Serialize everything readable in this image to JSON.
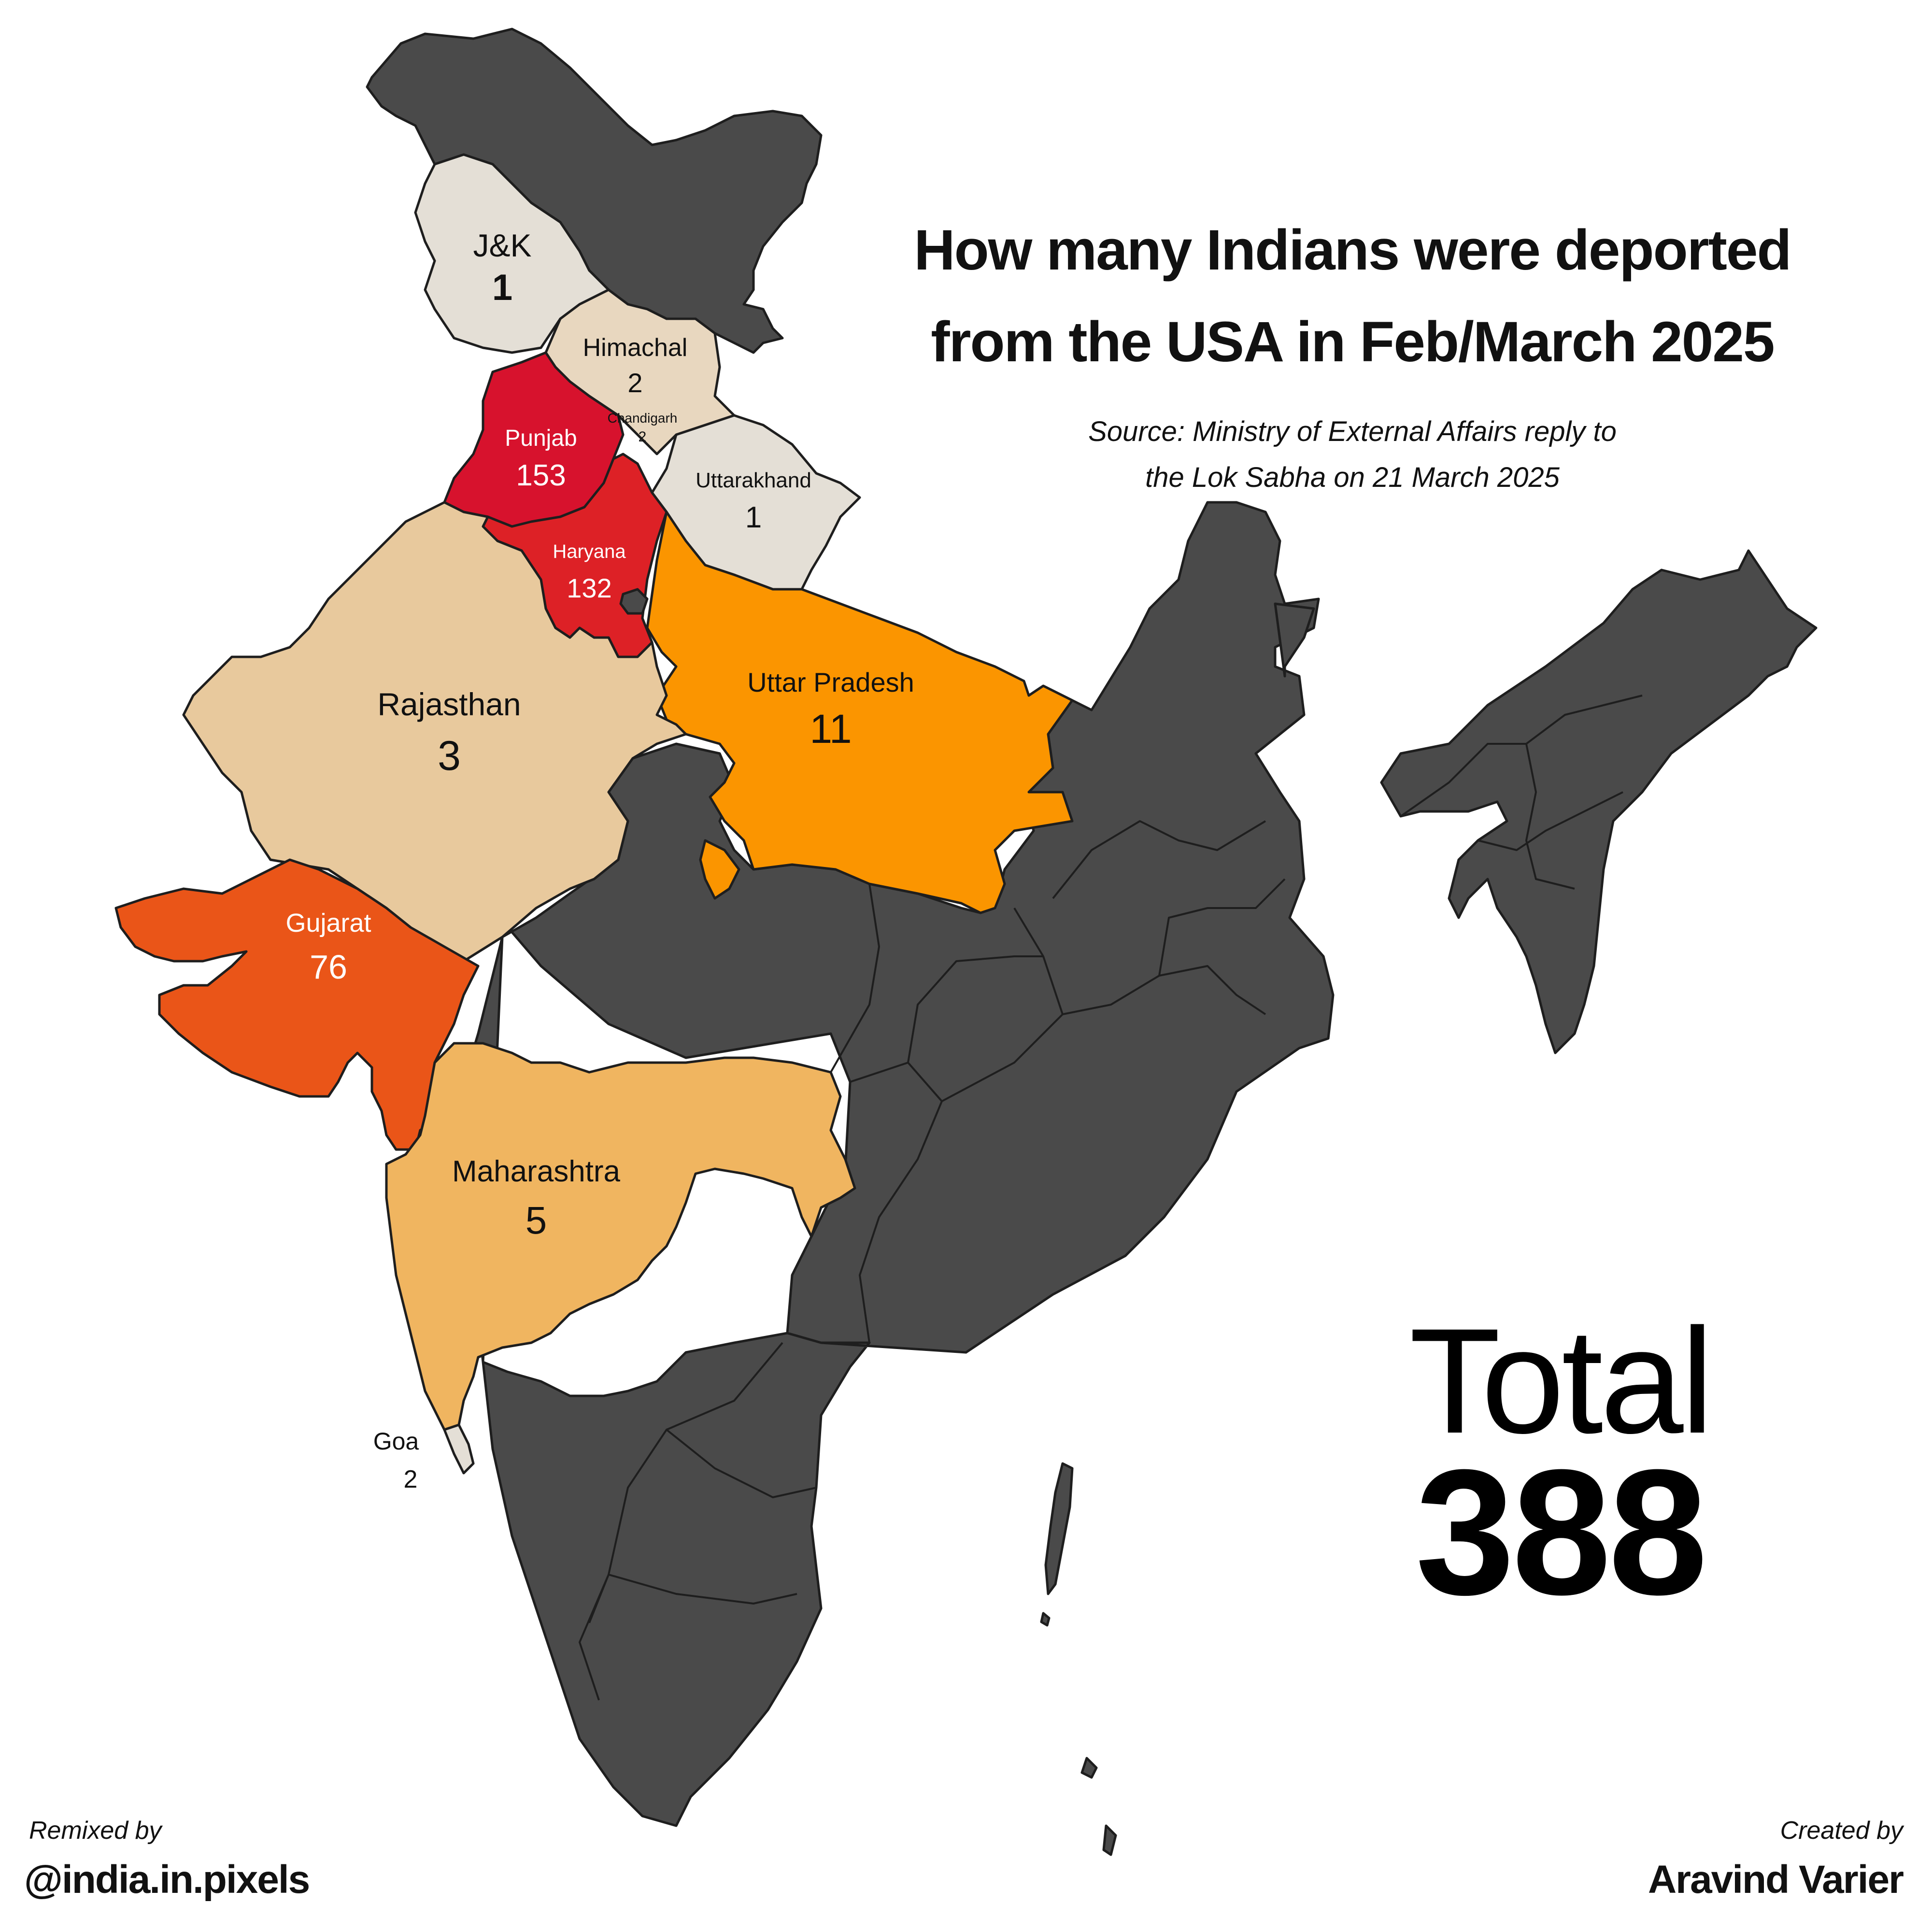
{
  "header": {
    "title_line1": "How many Indians were deported",
    "title_line2": "from the USA in Feb/March 2025",
    "source_line1": "Source: Ministry of External Affairs reply to",
    "source_line2": "the Lok Sabha on 21 March 2025"
  },
  "total": {
    "label": "Total",
    "value": "388"
  },
  "credits": {
    "remixed_label": "Remixed by",
    "remixed_handle": "@india.in.pixels",
    "created_label": "Created by",
    "created_name": "Aravind Varier"
  },
  "colors": {
    "no_data": "#4a4a4a",
    "background": "#ffffff",
    "state_border": "#1e1e1e"
  },
  "states": [
    {
      "name": "J&K",
      "value": "1",
      "color": "#e4dfd6"
    },
    {
      "name": "Himachal",
      "value": "2",
      "color": "#e8d7bf"
    },
    {
      "name": "Chandigarh",
      "value": "2",
      "color": "#e4dfd6"
    },
    {
      "name": "Punjab",
      "value": "153",
      "color": "#d7122d"
    },
    {
      "name": "Uttarakhand",
      "value": "1",
      "color": "#e4dfd6"
    },
    {
      "name": "Haryana",
      "value": "132",
      "color": "#dd2126"
    },
    {
      "name": "Uttar Pradesh",
      "value": "11",
      "color": "#fb9500"
    },
    {
      "name": "Rajasthan",
      "value": "3",
      "color": "#e8c99d"
    },
    {
      "name": "Gujarat",
      "value": "76",
      "color": "#ea5518"
    },
    {
      "name": "Maharashtra",
      "value": "5",
      "color": "#f0b560"
    },
    {
      "name": "Goa",
      "value": "2",
      "color": "#e4dfd6"
    }
  ]
}
